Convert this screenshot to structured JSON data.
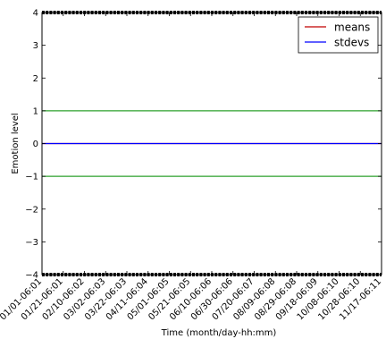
{
  "chart_data": {
    "type": "line",
    "title": "",
    "xlabel": "Time (month/day-hh:mm)",
    "ylabel": "Emotion level",
    "ylim": [
      -4,
      4
    ],
    "yticks": [
      -4,
      -3,
      -2,
      -1,
      0,
      1,
      2,
      3,
      4
    ],
    "ytick_labels": [
      "−4",
      "−3",
      "−2",
      "−1",
      "0",
      "1",
      "2",
      "3",
      "4"
    ],
    "xtick_labels": [
      "01/01-06:01",
      "01/21-06:01",
      "02/10-06:02",
      "03/02-06:03",
      "03/22-06:03",
      "04/11-06:04",
      "05/01-06:05",
      "05/21-06:05",
      "06/10-06:06",
      "06/30-06:06",
      "07/20-06:07",
      "08/09-06:08",
      "08/29-06:08",
      "09/18-06:09",
      "10/08-06:10",
      "10/28-06:10",
      "11/17-06:11"
    ],
    "grid": false,
    "legend_position": "top-right",
    "series": [
      {
        "name": "means",
        "color": "#c00000",
        "values": [
          0,
          0
        ]
      },
      {
        "name": "stdevs",
        "color": "#0000ff",
        "values": [
          0,
          0
        ]
      }
    ],
    "reference_lines": [
      {
        "y": 1,
        "color": "#2ca02c"
      },
      {
        "y": -1,
        "color": "#2ca02c"
      }
    ],
    "boundary_bands": [
      {
        "y": 4,
        "color": "#000000"
      },
      {
        "y": -4,
        "color": "#000000"
      }
    ]
  }
}
